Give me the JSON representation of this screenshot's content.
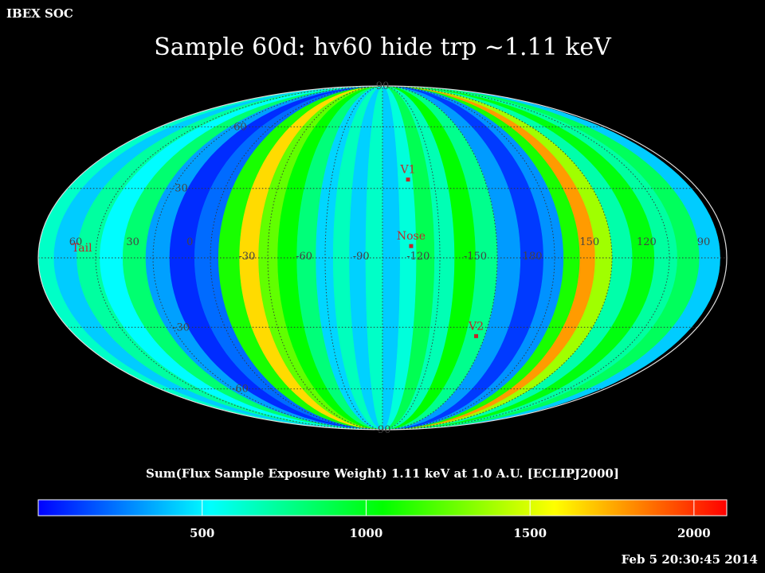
{
  "header": {
    "soc_label": "IBEX SOC"
  },
  "title": "Sample 60d: hv60 hide trp ~1.11 keV",
  "subtitle": "Sum(Flux Sample Exposure Weight)  1.11 keV at 1.0 A.U. [ECLIPJ2000]",
  "timestamp": "Feb  5 20:30:45 2014",
  "chart_data": {
    "type": "heatmap",
    "projection": "Mollweide",
    "frame": "ECLIPJ2000",
    "title": "Sample 60d: hv60 hide trp ~1.11 keV",
    "center_longitude": -90,
    "longitude_labels": [
      "60",
      "30",
      "0",
      "-30",
      "-60",
      "-90",
      "-120",
      "-150",
      "180",
      "150",
      "120",
      "90"
    ],
    "latitude_labels": [
      "90",
      "60",
      "30",
      "-30",
      "-60",
      "-90"
    ],
    "markers": [
      {
        "label": "V1",
        "lon": -105,
        "lat": 34
      },
      {
        "label": "Nose",
        "lon": -105,
        "lat": 5
      },
      {
        "label": "V2",
        "lon": -145,
        "lat": -34
      },
      {
        "label": "Tail",
        "lon": 75,
        "lat": 0
      }
    ],
    "colorbar": {
      "range": [
        0,
        2100
      ],
      "ticks": [
        500,
        1000,
        1500,
        2000
      ],
      "colors": [
        "#0000ff",
        "#00ffff",
        "#00ff00",
        "#ffff00",
        "#ff0000"
      ]
    },
    "longitude_bands": [
      {
        "lon": -85,
        "value": 640
      },
      {
        "lon": -77,
        "value": 430
      },
      {
        "lon": -68,
        "value": 660
      },
      {
        "lon": -60,
        "value": 440
      },
      {
        "lon": -50,
        "value": 800
      },
      {
        "lon": -40,
        "value": 1050
      },
      {
        "lon": -30,
        "value": 1250
      },
      {
        "lon": -20,
        "value": 1650
      },
      {
        "lon": -10,
        "value": 1100
      },
      {
        "lon": 2,
        "value": 220
      },
      {
        "lon": 15,
        "value": 90
      },
      {
        "lon": 28,
        "value": 330
      },
      {
        "lon": 40,
        "value": 820
      },
      {
        "lon": 52,
        "value": 520
      },
      {
        "lon": 64,
        "value": 720
      },
      {
        "lon": 76,
        "value": 420
      },
      {
        "lon": 88,
        "value": 640
      },
      {
        "lon": 99,
        "value": 420
      },
      {
        "lon": 110,
        "value": 860
      },
      {
        "lon": 122,
        "value": 720
      },
      {
        "lon": 134,
        "value": 1020
      },
      {
        "lon": 145,
        "value": 700
      },
      {
        "lon": 155,
        "value": 1380
      },
      {
        "lon": 163,
        "value": 1780
      },
      {
        "lon": 171,
        "value": 1100
      },
      {
        "lon": 180,
        "value": 300
      },
      {
        "lon": -168,
        "value": 120
      },
      {
        "lon": -156,
        "value": 320
      },
      {
        "lon": -144,
        "value": 760
      },
      {
        "lon": -133,
        "value": 1050
      },
      {
        "lon": -122,
        "value": 680
      },
      {
        "lon": -112,
        "value": 880
      },
      {
        "lon": -103,
        "value": 600
      },
      {
        "lon": -95,
        "value": 420
      }
    ]
  }
}
